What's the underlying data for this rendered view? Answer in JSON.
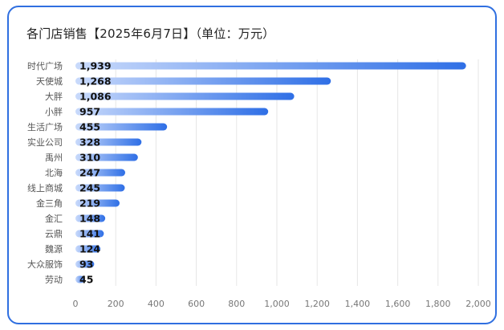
{
  "title": "各门店销售【2025年6月7日】（单位：万元）",
  "colors": {
    "bar_start": "#c9dafb",
    "bar_end": "#2f6fe6",
    "border": "#2f6fe0"
  },
  "chart_data": {
    "type": "bar",
    "orientation": "horizontal",
    "title": "各门店销售【2025年6月7日】（单位：万元）",
    "categories": [
      "时代广场",
      "天使城",
      "大胖",
      "小胖",
      "生活广场",
      "实业公司",
      "禹州",
      "北海",
      "线上商城",
      "金三角",
      "金汇",
      "云鼎",
      "魏源",
      "大众服饰",
      "劳动"
    ],
    "values": [
      1939,
      1268,
      1086,
      957,
      455,
      328,
      310,
      247,
      245,
      219,
      148,
      141,
      124,
      93,
      45
    ],
    "value_labels": [
      "1,939",
      "1,268",
      "1,086",
      "957",
      "455",
      "328",
      "310",
      "247",
      "245",
      "219",
      "148",
      "141",
      "124",
      "93",
      "45"
    ],
    "xlim": [
      0,
      2000
    ],
    "xticks": [
      0,
      200,
      400,
      600,
      800,
      1000,
      1200,
      1400,
      1600,
      1800,
      2000
    ],
    "xtick_labels": [
      "0",
      "200",
      "400",
      "600",
      "800",
      "1,000",
      "1,200",
      "1,400",
      "1,600",
      "1,800",
      "2,000"
    ],
    "grid": true,
    "xlabel": "",
    "ylabel": ""
  }
}
